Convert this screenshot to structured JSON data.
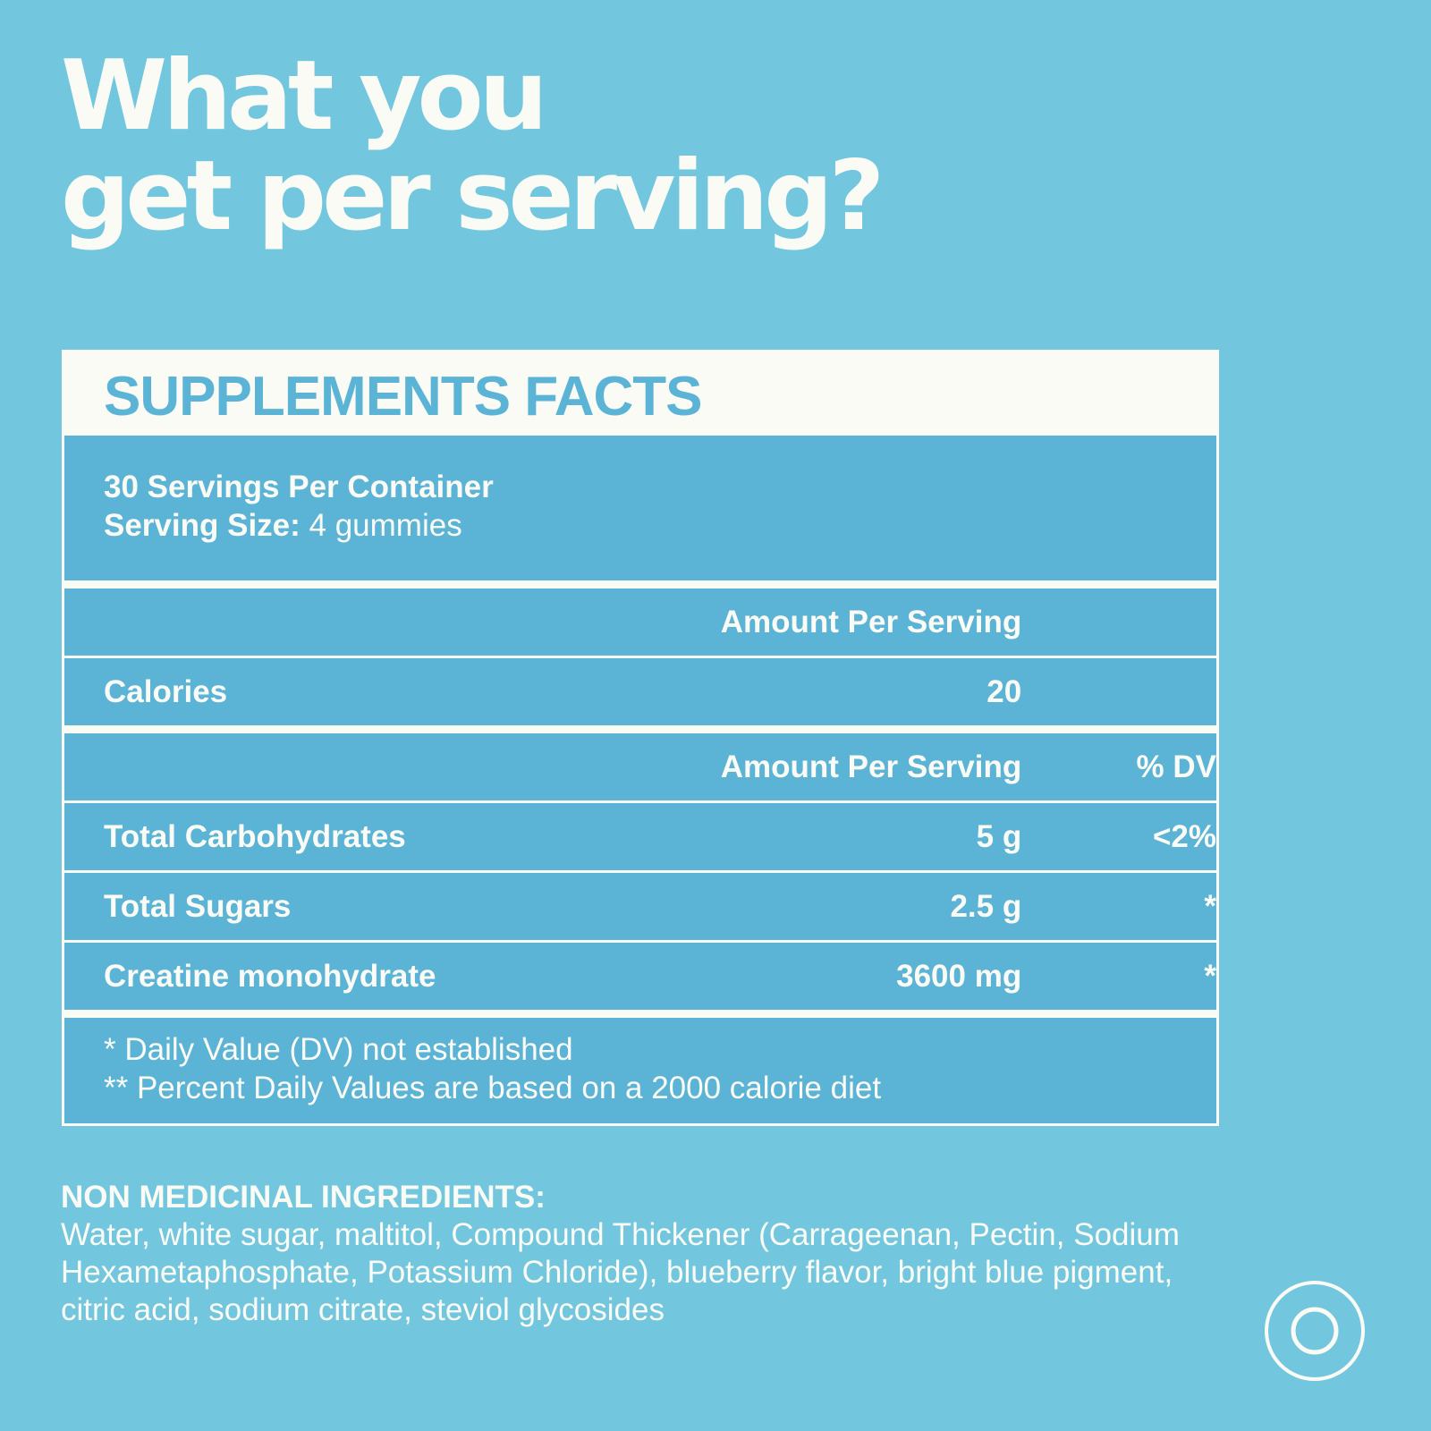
{
  "headline": {
    "line1": "What you",
    "line2": "get per serving?"
  },
  "facts": {
    "title": "SUPPLEMENTS FACTS",
    "servings_per_container": "30 Servings Per Container",
    "serving_size_label": "Serving Size:",
    "serving_size_value": " 4 gummies",
    "calories_header": {
      "amount": "Amount Per Serving"
    },
    "calories_row": {
      "name": "Calories",
      "amount": "20"
    },
    "nutrient_header": {
      "amount": "Amount Per Serving",
      "dv": "% DV"
    },
    "nutrients": [
      {
        "name": "Total Carbohydrates",
        "amount": "5 g",
        "dv": "<2%"
      },
      {
        "name": "Total Sugars",
        "amount": "2.5 g",
        "dv": "*"
      },
      {
        "name": "Creatine monohydrate",
        "amount": "3600 mg",
        "dv": "*"
      }
    ],
    "footnotes": [
      "* Daily Value (DV) not established",
      "** Percent Daily Values are based on a 2000 calorie diet"
    ]
  },
  "ingredients": {
    "title": "NON MEDICINAL INGREDIENTS:",
    "text": "Water, white sugar, maltitol, Compound Thickener (Carrageenan, Pectin, Sodium Hexametaphosphate, Potassium Chloride), blueberry flavor, bright blue pigment, citric acid, sodium citrate, steviol glycosides"
  },
  "colors": {
    "background": "#72c7de",
    "panel": "#5bb4d6",
    "cream": "#fbfbf6"
  },
  "icons": {
    "logo": "concentric-circle-logo-icon"
  }
}
